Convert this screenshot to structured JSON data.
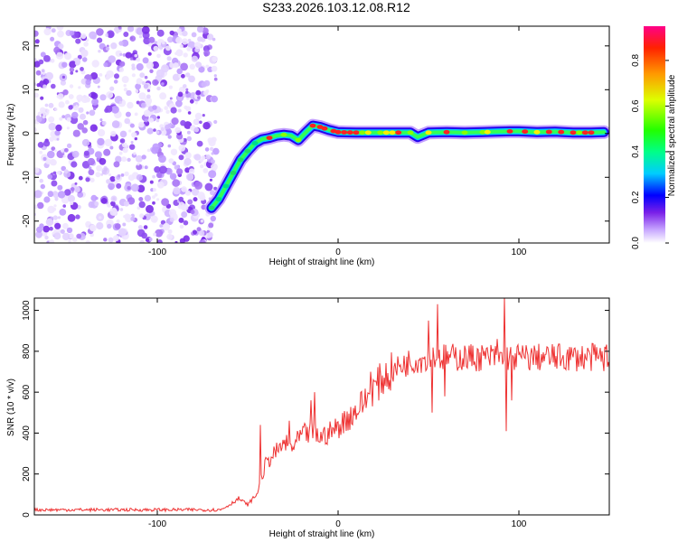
{
  "title": "S233.2026.103.12.08.R12",
  "chart_data": [
    {
      "type": "heatmap",
      "xlabel": "Height of straight line (km)",
      "ylabel": "Frequency (Hz)",
      "xlim": [
        -168,
        150
      ],
      "ylim": [
        -25,
        24.5
      ],
      "xticks": [
        -100,
        0,
        100
      ],
      "yticks": [
        -20,
        -10,
        0,
        10,
        20
      ],
      "noise_region": {
        "x_from": -168,
        "x_to": -67,
        "y_from": -25,
        "y_to": 24.5
      },
      "ridge": {
        "x": [
          -70,
          -66,
          -62,
          -58,
          -54,
          -50,
          -46,
          -42,
          -38,
          -34,
          -30,
          -26,
          -22,
          -18,
          -14,
          -10,
          -5,
          0,
          10,
          20,
          30,
          40,
          44,
          50,
          60,
          70,
          80,
          88,
          95,
          100,
          110,
          120,
          130,
          140,
          147
        ],
        "y": [
          -17,
          -15,
          -12,
          -9,
          -6,
          -4,
          -2.2,
          -1.3,
          -1,
          -0.5,
          -0.3,
          -0.5,
          -1.5,
          0.2,
          1.8,
          1.5,
          0.8,
          0.3,
          0.2,
          0.2,
          0.2,
          0.2,
          -0.8,
          0.2,
          0.3,
          0.2,
          0.3,
          0.4,
          0.5,
          0.5,
          0.3,
          0.4,
          0.2,
          0.2,
          0.3
        ]
      },
      "colorbar": {
        "label": "Normalized spectral amplitude",
        "range": [
          0,
          0.95
        ],
        "ticks": [
          0.0,
          0.2,
          0.4,
          0.6,
          0.8
        ]
      }
    },
    {
      "type": "line",
      "xlabel": "Height of straight line (km)",
      "ylabel": "SNR (10 * v/v)",
      "xlim": [
        -168,
        150
      ],
      "ylim": [
        0,
        1060
      ],
      "xticks": [
        -100,
        0,
        100
      ],
      "yticks": [
        0,
        200,
        400,
        600,
        800,
        1000
      ],
      "color": "#ee3333",
      "series": [
        {
          "name": "SNR",
          "x": [
            -168,
            -150,
            -130,
            -110,
            -90,
            -75,
            -65,
            -60,
            -55,
            -50,
            -45,
            -40,
            -35,
            -30,
            -25,
            -20,
            -15,
            -10,
            -5,
            0,
            5,
            10,
            15,
            20,
            25,
            30,
            35,
            40,
            45,
            50,
            55,
            60,
            65,
            70,
            75,
            80,
            85,
            90,
            95,
            100,
            110,
            120,
            130,
            140,
            150
          ],
          "y": [
            25,
            25,
            25,
            25,
            25,
            25,
            25,
            50,
            80,
            50,
            100,
            250,
            300,
            350,
            330,
            390,
            400,
            380,
            400,
            430,
            470,
            510,
            560,
            620,
            670,
            700,
            730,
            750,
            760,
            770,
            770,
            770,
            770,
            770,
            770,
            770,
            770,
            770,
            770,
            770,
            770,
            770,
            770,
            770,
            770
          ]
        }
      ],
      "spikes": [
        {
          "x": -43,
          "y": 440
        },
        {
          "x": -32,
          "y": 350
        },
        {
          "x": -27,
          "y": 460
        },
        {
          "x": -15,
          "y": 560
        },
        {
          "x": -13,
          "y": 600
        },
        {
          "x": 18,
          "y": 700
        },
        {
          "x": 50,
          "y": 950
        },
        {
          "x": 52,
          "y": 500
        },
        {
          "x": 55,
          "y": 1030
        },
        {
          "x": 59,
          "y": 580
        },
        {
          "x": 88,
          "y": 860
        },
        {
          "x": 92,
          "y": 1065
        },
        {
          "x": 93,
          "y": 410
        },
        {
          "x": 96,
          "y": 560
        }
      ]
    }
  ]
}
